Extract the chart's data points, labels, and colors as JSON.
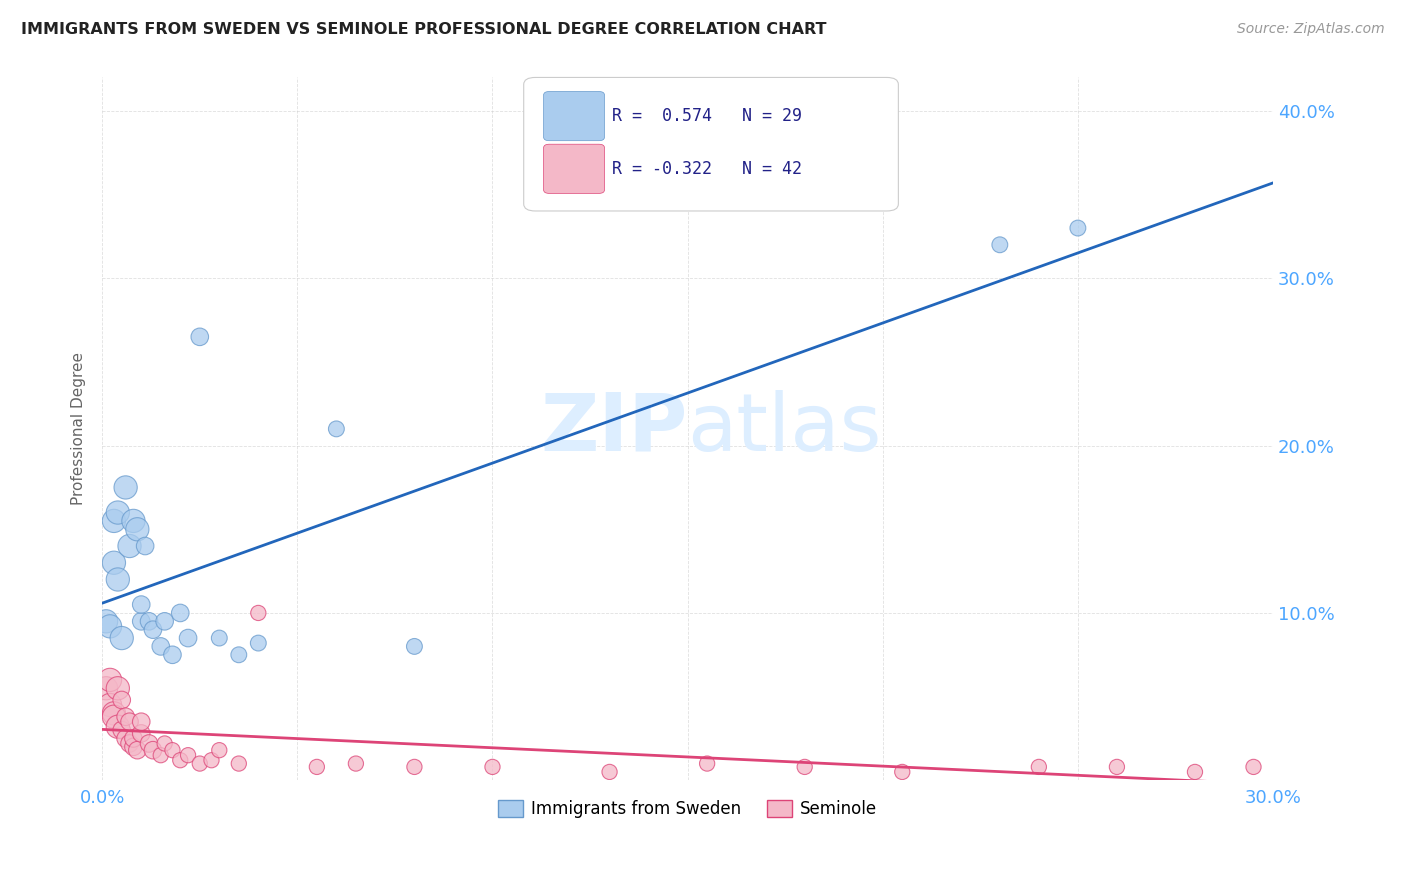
{
  "title": "IMMIGRANTS FROM SWEDEN VS SEMINOLE PROFESSIONAL DEGREE CORRELATION CHART",
  "source": "Source: ZipAtlas.com",
  "tick_color": "#4da6ff",
  "ylabel": "Professional Degree",
  "xlim": [
    0.0,
    0.3
  ],
  "ylim": [
    0.0,
    0.42
  ],
  "xticks": [
    0.0,
    0.05,
    0.1,
    0.15,
    0.2,
    0.25,
    0.3
  ],
  "yticks": [
    0.0,
    0.1,
    0.2,
    0.3,
    0.4
  ],
  "grid_color": "#cccccc",
  "background_color": "#ffffff",
  "legend_R1": "R =  0.574",
  "legend_N1": "N = 29",
  "legend_R2": "R = -0.322",
  "legend_N2": "N = 42",
  "legend_color1": "#aaccee",
  "legend_color2": "#f4b8c8",
  "trendline1_color": "#2266bb",
  "trendline2_color": "#dd4477",
  "scatter1_color": "#aaccee",
  "scatter2_color": "#f4b8c8",
  "scatter1_edge": "#6699cc",
  "scatter2_edge": "#dd4477",
  "watermark_color": "#ddeeff",
  "legend_label1": "Immigrants from Sweden",
  "legend_label2": "Seminole",
  "blue_scatter_x": [
    0.001,
    0.002,
    0.003,
    0.003,
    0.004,
    0.004,
    0.005,
    0.006,
    0.007,
    0.008,
    0.009,
    0.01,
    0.01,
    0.011,
    0.012,
    0.013,
    0.015,
    0.016,
    0.018,
    0.02,
    0.022,
    0.025,
    0.03,
    0.035,
    0.04,
    0.06,
    0.08,
    0.23,
    0.25
  ],
  "blue_scatter_y": [
    0.095,
    0.092,
    0.13,
    0.155,
    0.12,
    0.16,
    0.085,
    0.175,
    0.14,
    0.155,
    0.15,
    0.095,
    0.105,
    0.14,
    0.095,
    0.09,
    0.08,
    0.095,
    0.075,
    0.1,
    0.085,
    0.265,
    0.085,
    0.075,
    0.082,
    0.21,
    0.08,
    0.32,
    0.33
  ],
  "pink_scatter_x": [
    0.001,
    0.002,
    0.002,
    0.003,
    0.003,
    0.004,
    0.004,
    0.005,
    0.005,
    0.006,
    0.006,
    0.007,
    0.007,
    0.008,
    0.008,
    0.009,
    0.01,
    0.01,
    0.012,
    0.013,
    0.015,
    0.016,
    0.018,
    0.02,
    0.022,
    0.025,
    0.028,
    0.03,
    0.035,
    0.04,
    0.055,
    0.065,
    0.08,
    0.1,
    0.13,
    0.155,
    0.18,
    0.205,
    0.24,
    0.26,
    0.28,
    0.295
  ],
  "pink_scatter_y": [
    0.055,
    0.045,
    0.06,
    0.04,
    0.038,
    0.032,
    0.055,
    0.03,
    0.048,
    0.025,
    0.038,
    0.022,
    0.035,
    0.02,
    0.025,
    0.018,
    0.028,
    0.035,
    0.022,
    0.018,
    0.015,
    0.022,
    0.018,
    0.012,
    0.015,
    0.01,
    0.012,
    0.018,
    0.01,
    0.1,
    0.008,
    0.01,
    0.008,
    0.008,
    0.005,
    0.01,
    0.008,
    0.005,
    0.008,
    0.008,
    0.005,
    0.008
  ]
}
